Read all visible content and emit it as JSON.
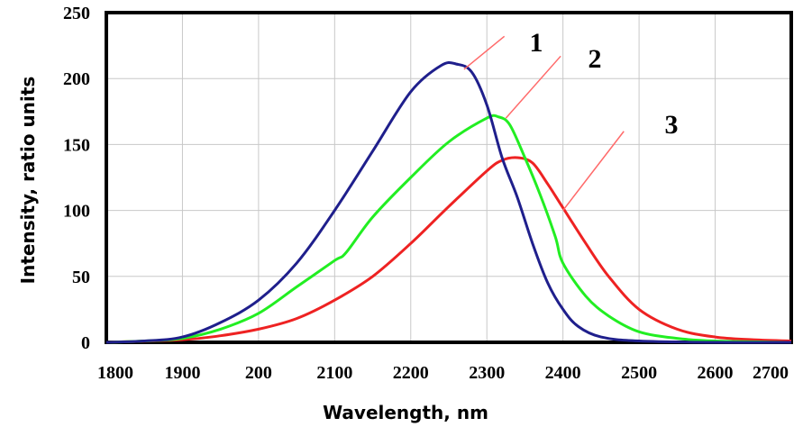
{
  "chart_data": {
    "type": "line",
    "title": "",
    "xlabel": "Wavelength, nm",
    "ylabel": "Intensity, ratio units",
    "x_tick_labels": [
      "1800",
      "1900",
      "200",
      "2100",
      "2200",
      "2300",
      "2400",
      "2500",
      "2600",
      "2700"
    ],
    "y_ticks": [
      0,
      50,
      100,
      150,
      200,
      250
    ],
    "xlim": [
      1800,
      2700
    ],
    "ylim": [
      0,
      250
    ],
    "grid": true,
    "legend": "none",
    "series": [
      {
        "name": "1",
        "color": "#1f1f8c",
        "x": [
          1800,
          1850,
          1900,
          1950,
          2000,
          2050,
          2100,
          2150,
          2200,
          2240,
          2260,
          2280,
          2300,
          2320,
          2340,
          2360,
          2380,
          2400,
          2420,
          2450,
          2500,
          2600,
          2700
        ],
        "y": [
          0,
          1,
          4,
          15,
          32,
          60,
          100,
          145,
          190,
          210,
          211,
          205,
          180,
          140,
          110,
          75,
          45,
          25,
          12,
          4,
          1,
          0,
          0
        ]
      },
      {
        "name": "2",
        "color": "#22ee22",
        "x": [
          1800,
          1850,
          1900,
          1950,
          2000,
          2050,
          2100,
          2115,
          2150,
          2200,
          2250,
          2300,
          2315,
          2330,
          2350,
          2370,
          2390,
          2400,
          2430,
          2460,
          2500,
          2550,
          2600,
          2700
        ],
        "y": [
          0,
          1,
          3,
          10,
          22,
          42,
          62,
          68,
          95,
          125,
          152,
          170,
          171,
          165,
          140,
          112,
          80,
          60,
          35,
          20,
          8,
          3,
          1,
          0
        ]
      },
      {
        "name": "3",
        "color": "#ee2222",
        "x": [
          1800,
          1900,
          1950,
          2000,
          2050,
          2100,
          2150,
          2200,
          2250,
          2300,
          2320,
          2340,
          2360,
          2380,
          2400,
          2430,
          2460,
          2500,
          2550,
          2600,
          2650,
          2700
        ],
        "y": [
          0,
          2,
          5,
          10,
          18,
          32,
          50,
          75,
          103,
          130,
          138,
          140,
          136,
          120,
          102,
          75,
          50,
          25,
          10,
          4,
          2,
          1
        ]
      }
    ],
    "annotations": [
      {
        "text": "1",
        "series": "1"
      },
      {
        "text": "2",
        "series": "2"
      },
      {
        "text": "3",
        "series": "3"
      }
    ]
  }
}
